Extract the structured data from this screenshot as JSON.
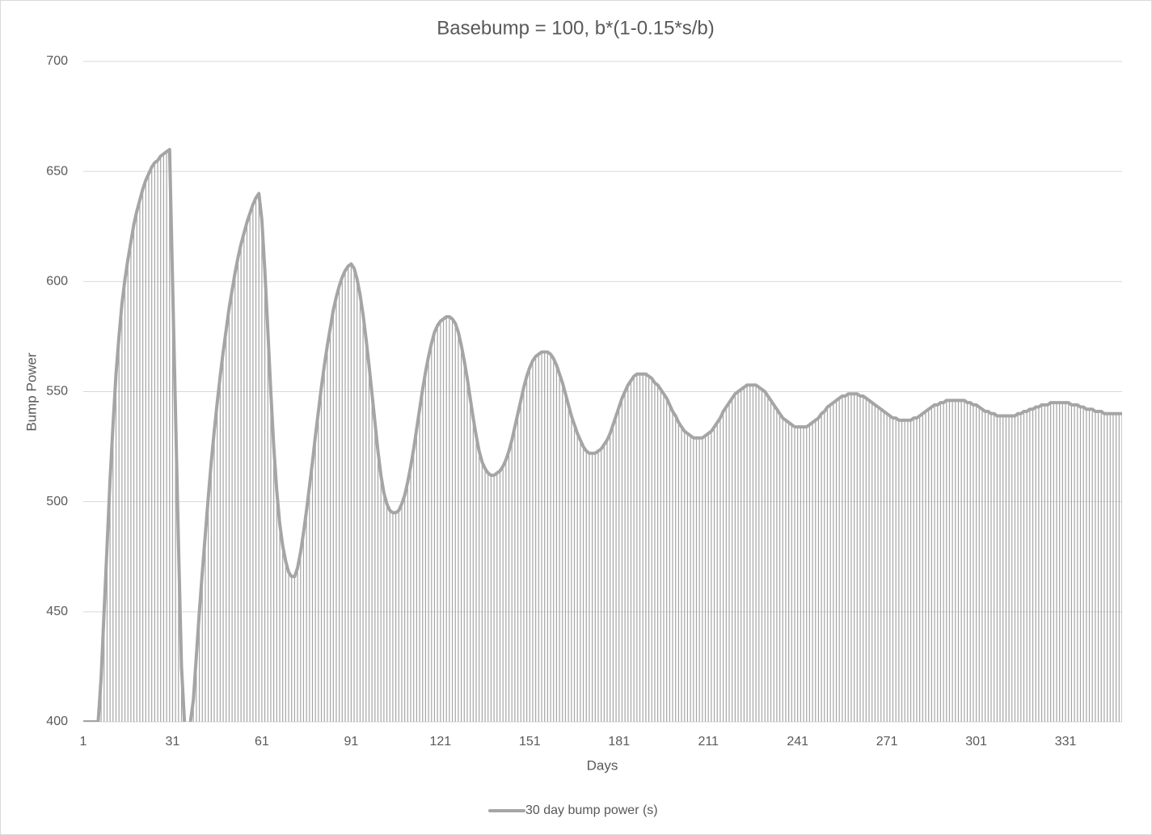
{
  "chart_data": {
    "type": "line",
    "title": "Basebump = 100, b*(1-0.15*s/b)",
    "x_label": "Days",
    "y_label": "Bump Power",
    "categories": [
      "1",
      null,
      null,
      null,
      null,
      null,
      null,
      null,
      null,
      null,
      null,
      null,
      null,
      null,
      null,
      null,
      null,
      null,
      null,
      null,
      null,
      null,
      null,
      null,
      null,
      null,
      null,
      null,
      null,
      null,
      "31",
      null,
      null,
      null,
      null,
      null,
      null,
      null,
      null,
      null,
      null,
      null,
      null,
      null,
      null,
      null,
      null,
      null,
      null,
      null,
      null,
      null,
      null,
      null,
      null,
      null,
      null,
      null,
      null,
      null,
      "61",
      null,
      null,
      null,
      null,
      null,
      null,
      null,
      null,
      null,
      null,
      null,
      null,
      null,
      null,
      null,
      null,
      null,
      null,
      null,
      null,
      null,
      null,
      null,
      null,
      null,
      null,
      null,
      null,
      null,
      "91",
      null,
      null,
      null,
      null,
      null,
      null,
      null,
      null,
      null,
      null,
      null,
      null,
      null,
      null,
      null,
      null,
      null,
      null,
      null,
      null,
      null,
      null,
      null,
      null,
      null,
      null,
      null,
      null,
      null,
      "121",
      null,
      null,
      null,
      null,
      null,
      null,
      null,
      null,
      null,
      null,
      null,
      null,
      null,
      null,
      null,
      null,
      null,
      null,
      null,
      null,
      null,
      null,
      null,
      null,
      null,
      null,
      null,
      null,
      null,
      "151",
      null,
      null,
      null,
      null,
      null,
      null,
      null,
      null,
      null,
      null,
      null,
      null,
      null,
      null,
      null,
      null,
      null,
      null,
      null,
      null,
      null,
      null,
      null,
      null,
      null,
      null,
      null,
      null,
      null,
      "181",
      null,
      null,
      null,
      null,
      null,
      null,
      null,
      null,
      null,
      null,
      null,
      null,
      null,
      null,
      null,
      null,
      null,
      null,
      null,
      null,
      null,
      null,
      null,
      null,
      null,
      null,
      null,
      null,
      null,
      "211",
      null,
      null,
      null,
      null,
      null,
      null,
      null,
      null,
      null,
      null,
      null,
      null,
      null,
      null,
      null,
      null,
      null,
      null,
      null,
      null,
      null,
      null,
      null,
      null,
      null,
      null,
      null,
      null,
      null,
      "241",
      null,
      null,
      null,
      null,
      null,
      null,
      null,
      null,
      null,
      null,
      null,
      null,
      null,
      null,
      null,
      null,
      null,
      null,
      null,
      null,
      null,
      null,
      null,
      null,
      null,
      null,
      null,
      null,
      null,
      "271",
      null,
      null,
      null,
      null,
      null,
      null,
      null,
      null,
      null,
      null,
      null,
      null,
      null,
      null,
      null,
      null,
      null,
      null,
      null,
      null,
      null,
      null,
      null,
      null,
      null,
      null,
      null,
      null,
      null,
      "301",
      null,
      null,
      null,
      null,
      null,
      null,
      null,
      null,
      null,
      null,
      null,
      null,
      null,
      null,
      null,
      null,
      null,
      null,
      null,
      null,
      null,
      null,
      null,
      null,
      null,
      null,
      null,
      null,
      null,
      "331",
      null,
      null,
      null,
      null,
      null,
      null,
      null,
      null,
      null,
      null,
      null,
      null,
      null,
      null,
      null,
      null,
      null,
      null,
      null
    ],
    "series": [
      {
        "name": "30 day bump power (s)",
        "color": "#a5a5a5",
        "values": [
          400,
          400,
          400,
          400,
          400,
          400,
          420,
          450,
          480,
          510,
          535,
          558,
          575,
          590,
          601,
          610,
          618,
          626,
          632,
          637,
          642,
          646,
          649,
          652,
          654,
          655,
          657,
          658,
          659,
          660,
          600,
          540,
          480,
          425,
          400,
          395,
          400,
          410,
          430,
          450,
          468,
          485,
          502,
          518,
          532,
          545,
          557,
          568,
          578,
          588,
          596,
          604,
          611,
          617,
          622,
          627,
          631,
          635,
          638,
          640,
          628,
          605,
          578,
          550,
          525,
          505,
          490,
          480,
          473,
          468,
          466,
          466,
          470,
          477,
          486,
          496,
          507,
          518,
          530,
          541,
          552,
          562,
          571,
          579,
          587,
          593,
          598,
          602,
          605,
          607,
          608,
          606,
          601,
          594,
          585,
          574,
          562,
          549,
          536,
          523,
          512,
          504,
          499,
          496,
          495,
          495,
          496,
          499,
          503,
          509,
          516,
          524,
          533,
          542,
          551,
          559,
          566,
          572,
          577,
          580,
          582,
          583,
          584,
          584,
          583,
          581,
          577,
          571,
          564,
          556,
          547,
          538,
          530,
          523,
          518,
          515,
          513,
          512,
          512,
          513,
          514,
          516,
          519,
          523,
          528,
          534,
          540,
          546,
          552,
          557,
          561,
          564,
          566,
          567,
          568,
          568,
          568,
          567,
          565,
          562,
          558,
          554,
          549,
          544,
          539,
          535,
          531,
          528,
          525,
          523,
          522,
          522,
          522,
          523,
          524,
          526,
          528,
          531,
          535,
          539,
          543,
          547,
          550,
          553,
          555,
          557,
          558,
          558,
          558,
          558,
          557,
          556,
          554,
          553,
          551,
          549,
          547,
          544,
          541,
          539,
          536,
          534,
          532,
          531,
          530,
          529,
          529,
          529,
          529,
          530,
          531,
          532,
          534,
          536,
          538,
          541,
          543,
          545,
          547,
          549,
          550,
          551,
          552,
          553,
          553,
          553,
          553,
          552,
          551,
          550,
          548,
          546,
          544,
          542,
          540,
          538,
          537,
          536,
          535,
          534,
          534,
          534,
          534,
          534,
          535,
          536,
          537,
          538,
          540,
          541,
          543,
          544,
          545,
          546,
          547,
          548,
          548,
          549,
          549,
          549,
          549,
          548,
          548,
          547,
          546,
          545,
          544,
          543,
          542,
          541,
          540,
          539,
          538,
          538,
          537,
          537,
          537,
          537,
          537,
          538,
          538,
          539,
          540,
          541,
          542,
          543,
          544,
          544,
          545,
          545,
          546,
          546,
          546,
          546,
          546,
          546,
          546,
          545,
          545,
          544,
          544,
          543,
          542,
          541,
          541,
          540,
          540,
          539,
          539,
          539,
          539,
          539,
          539,
          539,
          540,
          540,
          541,
          541,
          542,
          542,
          543,
          543,
          544,
          544,
          544,
          545,
          545,
          545,
          545,
          545,
          545,
          545,
          544,
          544,
          544,
          543,
          543,
          542,
          542,
          542,
          541,
          541,
          541,
          540,
          540,
          540,
          540,
          540,
          540,
          540
        ]
      }
    ],
    "ylim": [
      400,
      700
    ],
    "yticks": [
      400,
      450,
      500,
      550,
      600,
      650,
      700
    ],
    "grid": true,
    "drop_lines": true,
    "legend": "bottom"
  }
}
